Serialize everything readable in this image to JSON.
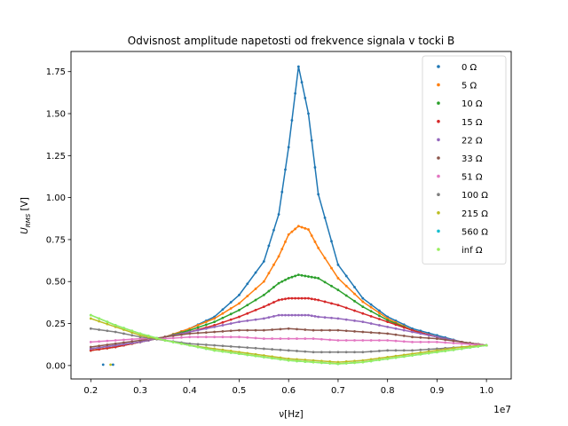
{
  "chart_data": {
    "type": "line",
    "title": "Odvisnost amplitude napetosti od frekvence signala v tocki B",
    "xlabel": "ν[Hz]",
    "ylabel_main": "U",
    "ylabel_sub": "RMS",
    "ylabel_unit": " [V]",
    "x_offset_label": "1e7",
    "x_scale": 10000000,
    "xlim": [
      0.16,
      1.05
    ],
    "ylim": [
      -0.08,
      1.87
    ],
    "x_ticks": [
      0.2,
      0.3,
      0.4,
      0.5,
      0.6,
      0.7,
      0.8,
      0.9,
      1.0
    ],
    "x_tick_labels": [
      "0.2",
      "0.3",
      "0.4",
      "0.5",
      "0.6",
      "0.7",
      "0.8",
      "0.9",
      "1.0"
    ],
    "y_ticks": [
      0.0,
      0.25,
      0.5,
      0.75,
      1.0,
      1.25,
      1.5,
      1.75
    ],
    "y_tick_labels": [
      "0.00",
      "0.25",
      "0.50",
      "0.75",
      "1.00",
      "1.25",
      "1.50",
      "1.75"
    ],
    "grid": false,
    "legend_position": "upper right",
    "series": [
      {
        "name": "0 Ω",
        "color": "#1f77b4",
        "points": [
          [
            0.2,
            0.1
          ],
          [
            0.25,
            0.12
          ],
          [
            0.3,
            0.14
          ],
          [
            0.35,
            0.17
          ],
          [
            0.4,
            0.22
          ],
          [
            0.45,
            0.29
          ],
          [
            0.5,
            0.42
          ],
          [
            0.55,
            0.62
          ],
          [
            0.58,
            0.9
          ],
          [
            0.6,
            1.3
          ],
          [
            0.62,
            1.78
          ],
          [
            0.64,
            1.5
          ],
          [
            0.66,
            1.02
          ],
          [
            0.7,
            0.6
          ],
          [
            0.75,
            0.4
          ],
          [
            0.8,
            0.29
          ],
          [
            0.85,
            0.22
          ],
          [
            0.9,
            0.18
          ],
          [
            0.95,
            0.14
          ],
          [
            1.0,
            0.12
          ]
        ],
        "stray": [
          [
            0.225,
            0.005
          ],
          [
            0.245,
            0.005
          ]
        ]
      },
      {
        "name": "5 Ω",
        "color": "#ff7f0e",
        "points": [
          [
            0.2,
            0.09
          ],
          [
            0.25,
            0.11
          ],
          [
            0.3,
            0.14
          ],
          [
            0.35,
            0.17
          ],
          [
            0.4,
            0.22
          ],
          [
            0.45,
            0.28
          ],
          [
            0.5,
            0.37
          ],
          [
            0.55,
            0.5
          ],
          [
            0.58,
            0.65
          ],
          [
            0.6,
            0.78
          ],
          [
            0.62,
            0.83
          ],
          [
            0.64,
            0.81
          ],
          [
            0.66,
            0.7
          ],
          [
            0.7,
            0.52
          ],
          [
            0.75,
            0.38
          ],
          [
            0.8,
            0.28
          ],
          [
            0.85,
            0.21
          ],
          [
            0.9,
            0.17
          ],
          [
            0.95,
            0.14
          ],
          [
            1.0,
            0.12
          ]
        ]
      },
      {
        "name": "10 Ω",
        "color": "#2ca02c",
        "points": [
          [
            0.2,
            0.09
          ],
          [
            0.25,
            0.11
          ],
          [
            0.3,
            0.14
          ],
          [
            0.35,
            0.17
          ],
          [
            0.4,
            0.21
          ],
          [
            0.45,
            0.26
          ],
          [
            0.5,
            0.33
          ],
          [
            0.55,
            0.42
          ],
          [
            0.58,
            0.49
          ],
          [
            0.6,
            0.52
          ],
          [
            0.62,
            0.54
          ],
          [
            0.64,
            0.53
          ],
          [
            0.66,
            0.52
          ],
          [
            0.7,
            0.45
          ],
          [
            0.75,
            0.35
          ],
          [
            0.8,
            0.27
          ],
          [
            0.85,
            0.21
          ],
          [
            0.9,
            0.17
          ],
          [
            0.95,
            0.14
          ],
          [
            1.0,
            0.12
          ]
        ]
      },
      {
        "name": "15 Ω",
        "color": "#d62728",
        "points": [
          [
            0.2,
            0.09
          ],
          [
            0.25,
            0.11
          ],
          [
            0.3,
            0.14
          ],
          [
            0.35,
            0.17
          ],
          [
            0.4,
            0.2
          ],
          [
            0.45,
            0.24
          ],
          [
            0.5,
            0.29
          ],
          [
            0.55,
            0.35
          ],
          [
            0.58,
            0.39
          ],
          [
            0.6,
            0.4
          ],
          [
            0.62,
            0.4
          ],
          [
            0.64,
            0.4
          ],
          [
            0.66,
            0.39
          ],
          [
            0.7,
            0.36
          ],
          [
            0.75,
            0.31
          ],
          [
            0.8,
            0.26
          ],
          [
            0.85,
            0.21
          ],
          [
            0.9,
            0.17
          ],
          [
            0.95,
            0.14
          ],
          [
            1.0,
            0.12
          ]
        ]
      },
      {
        "name": "22 Ω",
        "color": "#9467bd",
        "points": [
          [
            0.2,
            0.1
          ],
          [
            0.25,
            0.12
          ],
          [
            0.3,
            0.14
          ],
          [
            0.35,
            0.17
          ],
          [
            0.4,
            0.2
          ],
          [
            0.45,
            0.23
          ],
          [
            0.5,
            0.26
          ],
          [
            0.55,
            0.28
          ],
          [
            0.58,
            0.3
          ],
          [
            0.6,
            0.3
          ],
          [
            0.62,
            0.3
          ],
          [
            0.64,
            0.3
          ],
          [
            0.66,
            0.29
          ],
          [
            0.7,
            0.28
          ],
          [
            0.75,
            0.26
          ],
          [
            0.8,
            0.23
          ],
          [
            0.85,
            0.2
          ],
          [
            0.9,
            0.17
          ],
          [
            0.95,
            0.14
          ],
          [
            1.0,
            0.12
          ]
        ]
      },
      {
        "name": "33 Ω",
        "color": "#8c564b",
        "points": [
          [
            0.2,
            0.11
          ],
          [
            0.25,
            0.13
          ],
          [
            0.3,
            0.15
          ],
          [
            0.35,
            0.17
          ],
          [
            0.4,
            0.19
          ],
          [
            0.45,
            0.2
          ],
          [
            0.5,
            0.21
          ],
          [
            0.55,
            0.21
          ],
          [
            0.6,
            0.22
          ],
          [
            0.65,
            0.21
          ],
          [
            0.7,
            0.21
          ],
          [
            0.75,
            0.2
          ],
          [
            0.8,
            0.19
          ],
          [
            0.85,
            0.17
          ],
          [
            0.9,
            0.16
          ],
          [
            0.95,
            0.14
          ],
          [
            1.0,
            0.12
          ]
        ]
      },
      {
        "name": "51 Ω",
        "color": "#e377c2",
        "points": [
          [
            0.2,
            0.14
          ],
          [
            0.25,
            0.15
          ],
          [
            0.3,
            0.16
          ],
          [
            0.35,
            0.16
          ],
          [
            0.4,
            0.17
          ],
          [
            0.45,
            0.17
          ],
          [
            0.5,
            0.17
          ],
          [
            0.55,
            0.16
          ],
          [
            0.6,
            0.16
          ],
          [
            0.65,
            0.16
          ],
          [
            0.7,
            0.15
          ],
          [
            0.75,
            0.15
          ],
          [
            0.8,
            0.15
          ],
          [
            0.85,
            0.14
          ],
          [
            0.9,
            0.14
          ],
          [
            0.95,
            0.13
          ],
          [
            1.0,
            0.12
          ]
        ]
      },
      {
        "name": "100 Ω",
        "color": "#7f7f7f",
        "points": [
          [
            0.2,
            0.22
          ],
          [
            0.25,
            0.2
          ],
          [
            0.3,
            0.17
          ],
          [
            0.35,
            0.15
          ],
          [
            0.4,
            0.13
          ],
          [
            0.45,
            0.12
          ],
          [
            0.5,
            0.11
          ],
          [
            0.55,
            0.1
          ],
          [
            0.6,
            0.09
          ],
          [
            0.65,
            0.08
          ],
          [
            0.7,
            0.08
          ],
          [
            0.75,
            0.08
          ],
          [
            0.8,
            0.09
          ],
          [
            0.85,
            0.09
          ],
          [
            0.9,
            0.1
          ],
          [
            0.95,
            0.11
          ],
          [
            1.0,
            0.12
          ]
        ]
      },
      {
        "name": "215 Ω",
        "color": "#bcbd22",
        "points": [
          [
            0.2,
            0.28
          ],
          [
            0.25,
            0.23
          ],
          [
            0.3,
            0.18
          ],
          [
            0.35,
            0.15
          ],
          [
            0.4,
            0.12
          ],
          [
            0.45,
            0.1
          ],
          [
            0.5,
            0.08
          ],
          [
            0.55,
            0.06
          ],
          [
            0.6,
            0.04
          ],
          [
            0.65,
            0.03
          ],
          [
            0.7,
            0.02
          ],
          [
            0.75,
            0.03
          ],
          [
            0.8,
            0.05
          ],
          [
            0.85,
            0.07
          ],
          [
            0.9,
            0.09
          ],
          [
            0.95,
            0.11
          ],
          [
            1.0,
            0.12
          ]
        ],
        "stray": [
          [
            0.24,
            0.005
          ]
        ]
      },
      {
        "name": "560 Ω",
        "color": "#17becf",
        "points": [
          [
            0.2,
            0.3
          ],
          [
            0.25,
            0.24
          ],
          [
            0.3,
            0.19
          ],
          [
            0.35,
            0.15
          ],
          [
            0.4,
            0.12
          ],
          [
            0.45,
            0.09
          ],
          [
            0.5,
            0.07
          ],
          [
            0.55,
            0.05
          ],
          [
            0.6,
            0.03
          ],
          [
            0.65,
            0.02
          ],
          [
            0.7,
            0.01
          ],
          [
            0.75,
            0.02
          ],
          [
            0.8,
            0.04
          ],
          [
            0.85,
            0.06
          ],
          [
            0.9,
            0.08
          ],
          [
            0.95,
            0.1
          ],
          [
            1.0,
            0.12
          ]
        ]
      },
      {
        "name": "inf Ω",
        "color": "#98ef5c",
        "points": [
          [
            0.2,
            0.3
          ],
          [
            0.25,
            0.24
          ],
          [
            0.3,
            0.19
          ],
          [
            0.35,
            0.15
          ],
          [
            0.4,
            0.12
          ],
          [
            0.45,
            0.09
          ],
          [
            0.5,
            0.07
          ],
          [
            0.55,
            0.05
          ],
          [
            0.6,
            0.03
          ],
          [
            0.65,
            0.02
          ],
          [
            0.7,
            0.01
          ],
          [
            0.75,
            0.02
          ],
          [
            0.8,
            0.04
          ],
          [
            0.85,
            0.06
          ],
          [
            0.9,
            0.08
          ],
          [
            0.95,
            0.1
          ],
          [
            1.0,
            0.12
          ]
        ]
      }
    ]
  }
}
